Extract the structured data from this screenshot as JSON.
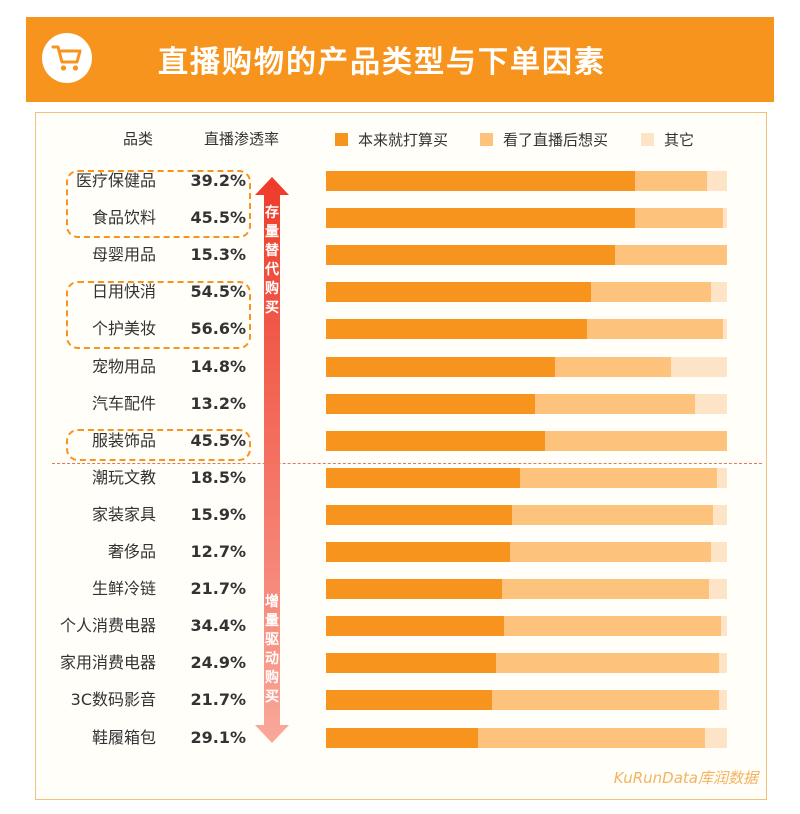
{
  "header": {
    "title": "直播购物的产品类型与下单因素",
    "icon": "shopping-cart-icon",
    "bg_color": "#F7941D"
  },
  "columns": {
    "category": "品类",
    "rate": "直播渗透率"
  },
  "legend": [
    {
      "label": "本来就打算买",
      "color": "#F7941D"
    },
    {
      "label": "看了直播后想买",
      "color": "#FDC27B"
    },
    {
      "label": "其它",
      "color": "#FDE4C6"
    }
  ],
  "side_labels": {
    "top": "存量替代购买",
    "bottom": "增量驱动购买"
  },
  "watermark": "KuRunData库润数据",
  "chart_data": {
    "type": "bar",
    "stacked": true,
    "orientation": "horizontal",
    "unit": "%",
    "categories": [
      "医疗保健品",
      "食品饮料",
      "母婴用品",
      "日用快消",
      "个护美妆",
      "宠物用品",
      "汽车配件",
      "服装饰品",
      "潮玩文教",
      "家装家具",
      "奢侈品",
      "生鲜冷链",
      "个人消费电器",
      "家用消费电器",
      "3C数码影音",
      "鞋履箱包"
    ],
    "penetration": [
      "39.2%",
      "45.5%",
      "15.3%",
      "54.5%",
      "56.6%",
      "14.8%",
      "13.2%",
      "45.5%",
      "18.5%",
      "15.9%",
      "12.7%",
      "21.7%",
      "34.4%",
      "24.9%",
      "21.7%",
      "29.1%"
    ],
    "series": [
      {
        "name": "本来就打算买",
        "values": [
          77,
          77,
          72,
          66,
          65,
          57,
          52,
          54.5,
          48.5,
          46.5,
          46,
          44,
          44.5,
          42.5,
          41.5,
          38
        ]
      },
      {
        "name": "看了直播后想买",
        "values": [
          18,
          22,
          28,
          30,
          34,
          29,
          40,
          45.5,
          49,
          50,
          50,
          51.5,
          54,
          55.5,
          56.5,
          56.5
        ]
      },
      {
        "name": "其它",
        "values": [
          5,
          1,
          0,
          4,
          1,
          14,
          8,
          0,
          2.5,
          3.5,
          4,
          4.5,
          1.5,
          2,
          2,
          5.5
        ]
      }
    ],
    "xlim": [
      0,
      100
    ],
    "groups": {
      "存量替代购买": [
        "医疗保健品",
        "食品饮料",
        "母婴用品",
        "日用快消",
        "个护美妆",
        "宠物用品",
        "汽车配件",
        "服装饰品"
      ],
      "增量驱动购买": [
        "潮玩文教",
        "家装家具",
        "奢侈品",
        "生鲜冷链",
        "个人消费电器",
        "家用消费电器",
        "3C数码影音",
        "鞋履箱包"
      ]
    },
    "highlighted": [
      "医疗保健品",
      "食品饮料",
      "日用快消",
      "个护美妆",
      "服装饰品"
    ]
  }
}
